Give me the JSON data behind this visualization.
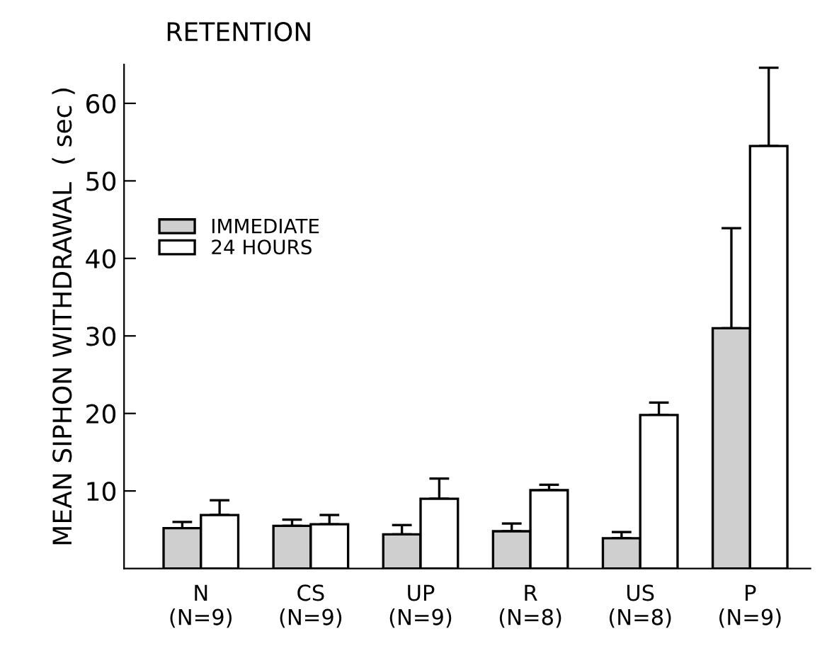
{
  "chart_data": {
    "type": "bar",
    "title": "RETENTION",
    "ylabel": "MEAN SIPHON WITHDRAWAL  ( sec )",
    "categories": [
      "N\n(N=9)",
      "CS\n(N=9)",
      "UP\n(N=9)",
      "R\n(N=8)",
      "US\n(N=8)",
      "P\n(N=9)"
    ],
    "series": [
      {
        "name": "IMMEDIATE",
        "color": "#cfcfcf",
        "values": [
          5.2,
          5.5,
          4.4,
          4.8,
          3.9,
          31.0
        ],
        "errors": [
          [
            5.2,
            6.0
          ],
          [
            5.5,
            6.3
          ],
          [
            4.4,
            5.6
          ],
          [
            4.8,
            5.8
          ],
          [
            3.9,
            4.7
          ],
          [
            31.0,
            43.9
          ]
        ]
      },
      {
        "name": "24 HOURS",
        "color": "#ffffff",
        "values": [
          6.9,
          5.7,
          9.0,
          10.1,
          19.8,
          54.5
        ],
        "errors": [
          [
            6.9,
            8.8
          ],
          [
            5.7,
            6.9
          ],
          [
            9.0,
            11.6
          ],
          [
            10.1,
            10.8
          ],
          [
            19.8,
            21.4
          ],
          [
            54.5,
            64.6
          ]
        ]
      }
    ],
    "ylim": [
      0,
      65
    ],
    "yticks": [
      10,
      20,
      30,
      40,
      50,
      60
    ],
    "grid": false,
    "legend": "top left"
  }
}
